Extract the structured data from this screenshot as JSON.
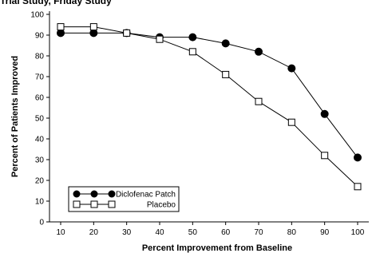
{
  "header": {
    "title_fragment": "Trial Study, Friday Study"
  },
  "chart_data": {
    "type": "line",
    "title": "",
    "xlabel": "Percent Improvement from Baseline",
    "ylabel": "Percent of Patients Improved",
    "x": [
      10,
      20,
      30,
      40,
      50,
      60,
      70,
      80,
      90,
      100
    ],
    "xlim": [
      10,
      100
    ],
    "ylim": [
      0,
      100
    ],
    "x_ticks": [
      "10",
      "20",
      "30",
      "40",
      "50",
      "60",
      "70",
      "80",
      "90",
      "100"
    ],
    "y_ticks": [
      "0",
      "10",
      "20",
      "30",
      "40",
      "50",
      "60",
      "70",
      "80",
      "90",
      "100"
    ],
    "grid": false,
    "legend_position": "bottom-left",
    "series": [
      {
        "name": "Diclofenac Patch",
        "marker": "filled-circle",
        "color": "#000000",
        "values": [
          91,
          91,
          91,
          89,
          89,
          86,
          82,
          74,
          52,
          31
        ]
      },
      {
        "name": "Placebo",
        "marker": "open-square",
        "color": "#000000",
        "values": [
          94,
          94,
          91,
          88,
          82,
          71,
          58,
          48,
          32,
          17
        ]
      }
    ]
  }
}
